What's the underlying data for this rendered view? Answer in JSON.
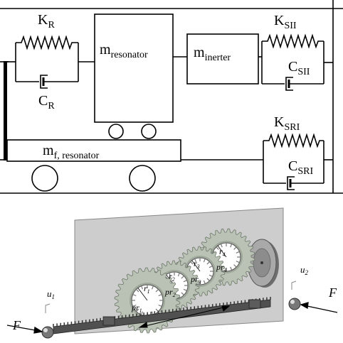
{
  "schematic": {
    "k_r": {
      "main": "K",
      "sub": "R"
    },
    "c_r": {
      "main": "C",
      "sub": "R"
    },
    "m_resonator": {
      "main": "m",
      "sub": "resonator"
    },
    "m_inerter": {
      "main": "m",
      "sub": "inerter"
    },
    "k_sii": {
      "main": "K",
      "sub": "SII"
    },
    "c_sii": {
      "main": "C",
      "sub": "SII"
    },
    "m_f_resonator": {
      "main": "m",
      "sub": "f, resonator"
    },
    "k_sri": {
      "main": "K",
      "sub": "SRI"
    },
    "c_sri": {
      "main": "C",
      "sub": "SRI"
    }
  },
  "mechanism": {
    "force_left": "F",
    "force_right": "F",
    "disp_left": {
      "main": "u",
      "sub": "1"
    },
    "disp_right": {
      "main": "u",
      "sub": "2"
    },
    "gear_labels": [
      {
        "r": "r",
        "rsub": "1",
        "pr": "pr",
        "prsub": "1"
      },
      {
        "r": "r",
        "rsub": "2",
        "pr": "pr",
        "prsub": "2"
      },
      {
        "r": "r",
        "rsub": "3",
        "pr": "pr",
        "prsub": "3"
      },
      {
        "r": "r",
        "rsub": "4",
        "pr": "pr",
        "prsub": "4"
      }
    ]
  },
  "colors": {
    "line": "#000000",
    "panel": "#cdcdcd",
    "gear": "#b9c2b5",
    "rack": "#505050",
    "flywheel": "#9a9a9a"
  }
}
